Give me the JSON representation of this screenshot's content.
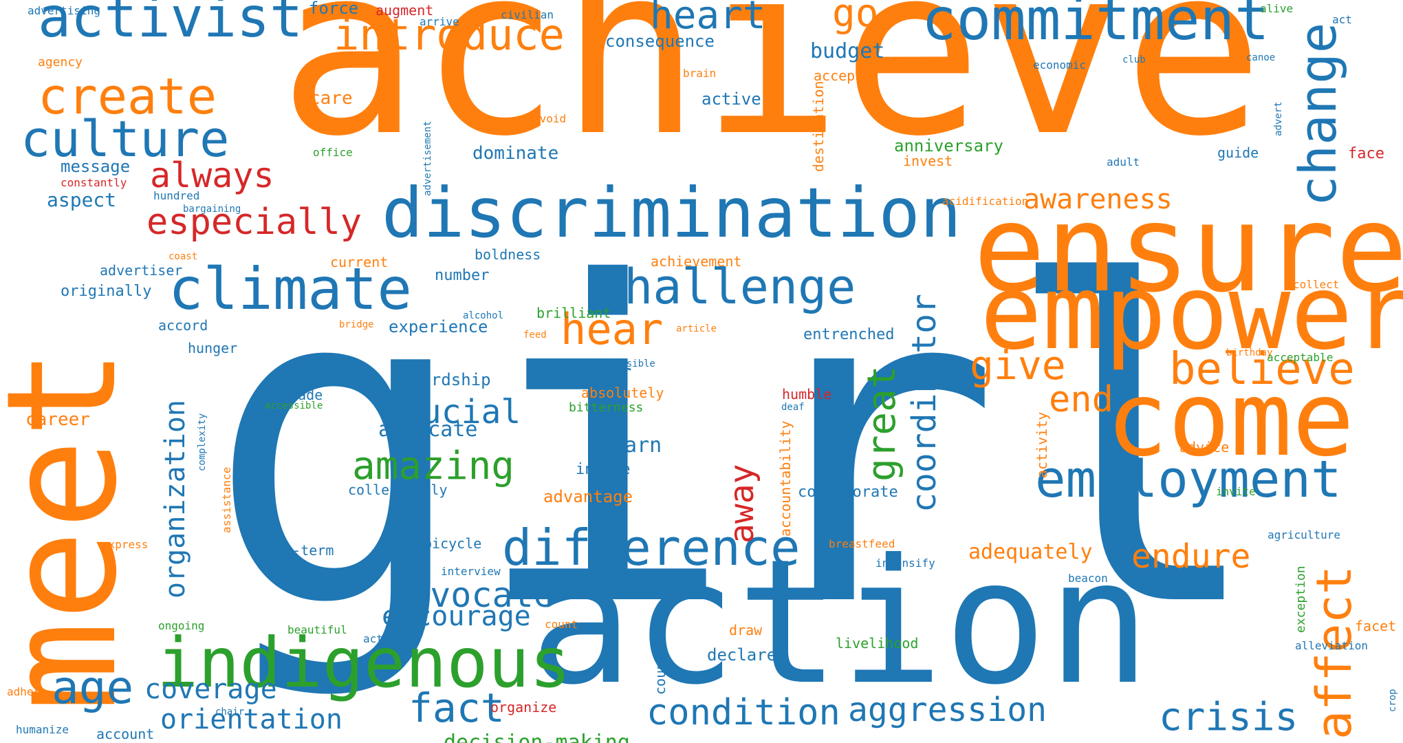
{
  "colors": {
    "blue": "#1f77b4",
    "orange": "#ff7f0e",
    "green": "#2ca02c",
    "red": "#d62728",
    "background": "#ffffff"
  },
  "words": [
    {
      "text": "girl",
      "color": "blue"
    },
    {
      "text": "achieve",
      "color": "orange"
    },
    {
      "text": "action",
      "color": "blue"
    },
    {
      "text": "meet",
      "color": "orange"
    },
    {
      "text": "ensure",
      "color": "orange"
    },
    {
      "text": "empower",
      "color": "orange"
    },
    {
      "text": "come",
      "color": "orange"
    },
    {
      "text": "discrimination",
      "color": "blue"
    },
    {
      "text": "indigenous",
      "color": "green"
    },
    {
      "text": "commitment",
      "color": "blue"
    },
    {
      "text": "climate",
      "color": "blue"
    },
    {
      "text": "activist",
      "color": "blue"
    },
    {
      "text": "employment",
      "color": "blue"
    },
    {
      "text": "challenge",
      "color": "blue"
    },
    {
      "text": "difference",
      "color": "blue"
    },
    {
      "text": "introduce",
      "color": "orange"
    },
    {
      "text": "create",
      "color": "orange"
    },
    {
      "text": "culture",
      "color": "blue"
    },
    {
      "text": "change",
      "color": "blue"
    },
    {
      "text": "affect",
      "color": "orange"
    },
    {
      "text": "age",
      "color": "blue"
    },
    {
      "text": "believe",
      "color": "orange"
    },
    {
      "text": "hear",
      "color": "orange"
    },
    {
      "text": "especially",
      "color": "red"
    },
    {
      "text": "crisis",
      "color": "blue"
    },
    {
      "text": "condition",
      "color": "blue"
    },
    {
      "text": "aggression",
      "color": "blue"
    },
    {
      "text": "fact",
      "color": "blue"
    },
    {
      "text": "heart",
      "color": "blue"
    },
    {
      "text": "advocate",
      "color": "blue"
    },
    {
      "text": "amazing",
      "color": "green"
    },
    {
      "text": "give",
      "color": "orange"
    },
    {
      "text": "crucial",
      "color": "blue"
    },
    {
      "text": "always",
      "color": "red"
    },
    {
      "text": "go",
      "color": "orange"
    },
    {
      "text": "coverage",
      "color": "blue"
    },
    {
      "text": "orientation",
      "color": "blue"
    },
    {
      "text": "encourage",
      "color": "blue"
    },
    {
      "text": "end",
      "color": "orange"
    },
    {
      "text": "endure",
      "color": "orange"
    },
    {
      "text": "awareness",
      "color": "orange"
    },
    {
      "text": "organization",
      "color": "blue"
    },
    {
      "text": "great",
      "color": "green"
    },
    {
      "text": "coordinator",
      "color": "blue"
    },
    {
      "text": "away",
      "color": "red"
    },
    {
      "text": "decision-making",
      "color": "green"
    },
    {
      "text": "adequately",
      "color": "orange"
    },
    {
      "text": "earn",
      "color": "blue"
    },
    {
      "text": "allocate",
      "color": "blue"
    },
    {
      "text": "center",
      "color": "blue"
    },
    {
      "text": "hardship",
      "color": "blue"
    },
    {
      "text": "experience",
      "color": "blue"
    },
    {
      "text": "aspect",
      "color": "blue"
    },
    {
      "text": "message",
      "color": "blue"
    },
    {
      "text": "dominate",
      "color": "blue"
    },
    {
      "text": "anniversary",
      "color": "green"
    },
    {
      "text": "active",
      "color": "blue"
    },
    {
      "text": "budget",
      "color": "blue"
    },
    {
      "text": "consequence",
      "color": "blue"
    },
    {
      "text": "force",
      "color": "blue"
    },
    {
      "text": "augment",
      "color": "red"
    },
    {
      "text": "career",
      "color": "orange"
    },
    {
      "text": "advantage",
      "color": "orange"
    },
    {
      "text": "collaborate",
      "color": "blue"
    },
    {
      "text": "entrenched",
      "color": "blue"
    },
    {
      "text": "number",
      "color": "blue"
    },
    {
      "text": "boldness",
      "color": "blue"
    },
    {
      "text": "current",
      "color": "orange"
    },
    {
      "text": "achievement",
      "color": "orange"
    },
    {
      "text": "brilliant",
      "color": "green"
    },
    {
      "text": "accord",
      "color": "blue"
    },
    {
      "text": "hunger",
      "color": "blue"
    },
    {
      "text": "originally",
      "color": "blue"
    },
    {
      "text": "advertiser",
      "color": "blue"
    },
    {
      "text": "long-term",
      "color": "blue"
    },
    {
      "text": "bicycle",
      "color": "blue"
    },
    {
      "text": "declare",
      "color": "blue"
    },
    {
      "text": "livelihood",
      "color": "green"
    },
    {
      "text": "injure",
      "color": "blue"
    },
    {
      "text": "collectively",
      "color": "blue"
    },
    {
      "text": "decade",
      "color": "blue"
    },
    {
      "text": "care",
      "color": "orange"
    },
    {
      "text": "accept",
      "color": "orange"
    },
    {
      "text": "invest",
      "color": "orange"
    },
    {
      "text": "guide",
      "color": "blue"
    },
    {
      "text": "face",
      "color": "red"
    },
    {
      "text": "advice",
      "color": "orange"
    },
    {
      "text": "facet",
      "color": "orange"
    },
    {
      "text": "absolutely",
      "color": "orange"
    },
    {
      "text": "bitterness",
      "color": "green"
    },
    {
      "text": "humble",
      "color": "red"
    },
    {
      "text": "organize",
      "color": "red"
    },
    {
      "text": "draw",
      "color": "orange"
    },
    {
      "text": "account",
      "color": "blue"
    },
    {
      "text": "counseling",
      "color": "blue"
    },
    {
      "text": "accountability",
      "color": "orange"
    },
    {
      "text": "destination",
      "color": "orange"
    },
    {
      "text": "activity",
      "color": "orange"
    },
    {
      "text": "exception",
      "color": "green"
    },
    {
      "text": "assistance",
      "color": "orange"
    },
    {
      "text": "complexity",
      "color": "blue"
    },
    {
      "text": "advertisement",
      "color": "blue"
    },
    {
      "text": "advert",
      "color": "blue"
    },
    {
      "text": "actor",
      "color": "blue"
    },
    {
      "text": "crop",
      "color": "blue"
    },
    {
      "text": "advertising",
      "color": "blue"
    },
    {
      "text": "agency",
      "color": "orange"
    },
    {
      "text": "arrive",
      "color": "blue"
    },
    {
      "text": "civilian",
      "color": "blue"
    },
    {
      "text": "brain",
      "color": "orange"
    },
    {
      "text": "avoid",
      "color": "orange"
    },
    {
      "text": "office",
      "color": "green"
    },
    {
      "text": "constantly",
      "color": "red"
    },
    {
      "text": "hundred",
      "color": "blue"
    },
    {
      "text": "bargaining",
      "color": "blue"
    },
    {
      "text": "coast",
      "color": "orange"
    },
    {
      "text": "alcohol",
      "color": "blue"
    },
    {
      "text": "bridge",
      "color": "orange"
    },
    {
      "text": "feed",
      "color": "orange"
    },
    {
      "text": "article",
      "color": "orange"
    },
    {
      "text": "invisible",
      "color": "blue"
    },
    {
      "text": "accessible",
      "color": "green"
    },
    {
      "text": "deaf",
      "color": "blue"
    },
    {
      "text": "economic",
      "color": "blue"
    },
    {
      "text": "club",
      "color": "blue"
    },
    {
      "text": "alive",
      "color": "green"
    },
    {
      "text": "act",
      "color": "blue"
    },
    {
      "text": "canoe",
      "color": "blue"
    },
    {
      "text": "adult",
      "color": "blue"
    },
    {
      "text": "acidification",
      "color": "orange"
    },
    {
      "text": "collect",
      "color": "orange"
    },
    {
      "text": "birthday",
      "color": "orange"
    },
    {
      "text": "acceptable",
      "color": "green"
    },
    {
      "text": "breastfeed",
      "color": "orange"
    },
    {
      "text": "intensify",
      "color": "blue"
    },
    {
      "text": "interview",
      "color": "blue"
    },
    {
      "text": "express",
      "color": "orange"
    },
    {
      "text": "invite",
      "color": "green"
    },
    {
      "text": "agriculture",
      "color": "blue"
    },
    {
      "text": "beacon",
      "color": "blue"
    },
    {
      "text": "count",
      "color": "orange"
    },
    {
      "text": "ongoing",
      "color": "green"
    },
    {
      "text": "beautiful",
      "color": "green"
    },
    {
      "text": "activism",
      "color": "blue"
    },
    {
      "text": "chair",
      "color": "blue"
    },
    {
      "text": "adhere",
      "color": "orange"
    },
    {
      "text": "humanize",
      "color": "blue"
    },
    {
      "text": "alleviation",
      "color": "blue"
    }
  ]
}
